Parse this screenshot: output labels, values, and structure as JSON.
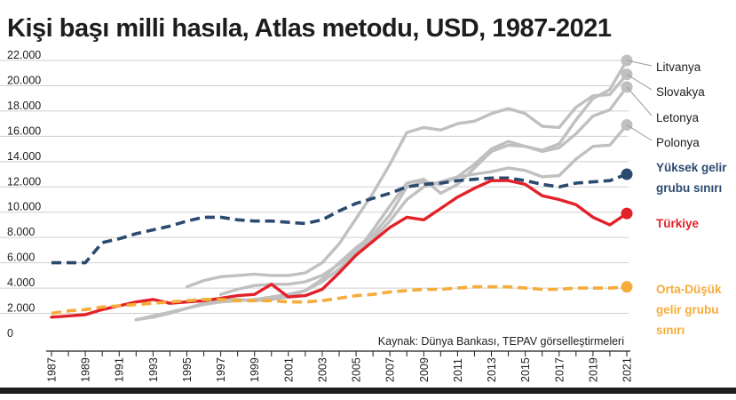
{
  "chart_data": {
    "type": "line",
    "title": "Kişi başı milli hasıla, Atlas metodu, USD, 1987-2021",
    "source": "Kaynak: Dünya Bankası, TEPAV görselleştirmeleri",
    "xlim": [
      1987,
      2021
    ],
    "ylim": [
      0,
      22000
    ],
    "x_ticks": [
      "1987",
      "1989",
      "1991",
      "1993",
      "1995",
      "1997",
      "1999",
      "2001",
      "2003",
      "2005",
      "2007",
      "2009",
      "2011",
      "2013",
      "2015",
      "2017",
      "2019",
      "2021"
    ],
    "y_ticks": [
      "0",
      "2.000",
      "4.000",
      "6.000",
      "8.000",
      "10.000",
      "12.000",
      "14.000",
      "16.000",
      "18.000",
      "20.000",
      "22.000"
    ],
    "grid": "horizontal",
    "legend": "end-of-line labels, right",
    "series": [
      {
        "name": "Litvanya",
        "color": "#c0c0c0",
        "dashed": false,
        "x": [
          1992,
          1993,
          1994,
          1995,
          1996,
          1997,
          1998,
          1999,
          2000,
          2001,
          2002,
          2003,
          2004,
          2005,
          2006,
          2007,
          2008,
          2009,
          2010,
          2011,
          2012,
          2013,
          2014,
          2015,
          2016,
          2017,
          2018,
          2019,
          2020,
          2021
        ],
        "y": [
          1500,
          1800,
          2100,
          2400,
          2800,
          3100,
          3100,
          3000,
          3100,
          3300,
          3800,
          4700,
          6000,
          7200,
          8200,
          9800,
          12000,
          12400,
          12200,
          12800,
          13800,
          15000,
          15600,
          15200,
          14900,
          15400,
          17300,
          19000,
          19700,
          22000
        ]
      },
      {
        "name": "Slovakya",
        "color": "#c0c0c0",
        "dashed": false,
        "x": [
          1995,
          1996,
          1997,
          1998,
          1999,
          2000,
          2001,
          2002,
          2003,
          2004,
          2005,
          2006,
          2007,
          2008,
          2009,
          2010,
          2011,
          2012,
          2013,
          2014,
          2015,
          2016,
          2017,
          2018,
          2019,
          2020,
          2021
        ],
        "y": [
          4100,
          4600,
          4900,
          5000,
          5100,
          5000,
          5000,
          5200,
          6000,
          7500,
          9500,
          11500,
          13800,
          16300,
          16700,
          16500,
          17000,
          17200,
          17800,
          18200,
          17800,
          16800,
          16700,
          18300,
          19200,
          19300,
          20900
        ]
      },
      {
        "name": "Letonya",
        "color": "#c0c0c0",
        "dashed": false,
        "x": [
          1992,
          1993,
          1994,
          1995,
          1996,
          1997,
          1998,
          1999,
          2000,
          2001,
          2002,
          2003,
          2004,
          2005,
          2006,
          2007,
          2008,
          2009,
          2010,
          2011,
          2012,
          2013,
          2014,
          2015,
          2016,
          2017,
          2018,
          2019,
          2020,
          2021
        ],
        "y": [
          1500,
          1700,
          2000,
          2400,
          2700,
          2900,
          3000,
          3100,
          3300,
          3500,
          3800,
          4500,
          5500,
          6800,
          8600,
          10500,
          12300,
          12600,
          11500,
          12200,
          13500,
          14800,
          15300,
          15200,
          14800,
          15100,
          16200,
          17600,
          18100,
          19900
        ]
      },
      {
        "name": "Polonya",
        "color": "#c0c0c0",
        "dashed": false,
        "x": [
          1997,
          1998,
          1999,
          2000,
          2001,
          2002,
          2003,
          2004,
          2005,
          2006,
          2007,
          2008,
          2009,
          2010,
          2011,
          2012,
          2013,
          2014,
          2015,
          2016,
          2017,
          2018,
          2019,
          2020,
          2021
        ],
        "y": [
          3500,
          3900,
          4200,
          4300,
          4300,
          4500,
          5000,
          5900,
          6900,
          7900,
          9300,
          11000,
          12000,
          12400,
          12800,
          13000,
          13200,
          13500,
          13300,
          12800,
          12900,
          14200,
          15200,
          15300,
          16900
        ]
      },
      {
        "name": "Yüksek gelir grubu sınırı",
        "color": "#2b4a70",
        "dashed": true,
        "x": [
          1987,
          1988,
          1989,
          1990,
          1991,
          1992,
          1993,
          1994,
          1995,
          1996,
          1997,
          1998,
          1999,
          2000,
          2001,
          2002,
          2003,
          2004,
          2005,
          2006,
          2007,
          2008,
          2009,
          2010,
          2011,
          2012,
          2013,
          2014,
          2015,
          2016,
          2017,
          2018,
          2019,
          2020,
          2021
        ],
        "y": [
          6000,
          6000,
          6000,
          7600,
          7900,
          8300,
          8600,
          8900,
          9300,
          9600,
          9600,
          9400,
          9300,
          9300,
          9200,
          9100,
          9400,
          10100,
          10700,
          11100,
          11500,
          12000,
          12200,
          12300,
          12500,
          12600,
          12700,
          12700,
          12500,
          12200,
          12000,
          12300,
          12400,
          12500,
          13000
        ]
      },
      {
        "name": "Türkiye",
        "color": "#e32129",
        "dashed": false,
        "x": [
          1987,
          1988,
          1989,
          1990,
          1991,
          1992,
          1993,
          1994,
          1995,
          1996,
          1997,
          1998,
          1999,
          2000,
          2001,
          2002,
          2003,
          2004,
          2005,
          2006,
          2007,
          2008,
          2009,
          2010,
          2011,
          2012,
          2013,
          2014,
          2015,
          2016,
          2017,
          2018,
          2019,
          2020,
          2021
        ],
        "y": [
          1700,
          1800,
          1900,
          2300,
          2600,
          2900,
          3100,
          2800,
          2900,
          3000,
          3200,
          3400,
          3500,
          4300,
          3300,
          3400,
          3900,
          5200,
          6600,
          7700,
          8800,
          9600,
          9400,
          10300,
          11200,
          11900,
          12500,
          12500,
          12200,
          11300,
          11000,
          10600,
          9600,
          9000,
          9900
        ]
      },
      {
        "name": "Orta-Düşük gelir grubu sınırı",
        "color": "#f5ac3b",
        "dashed": true,
        "x": [
          1987,
          1988,
          1989,
          1990,
          1991,
          1992,
          1993,
          1994,
          1995,
          1996,
          1997,
          1998,
          1999,
          2000,
          2001,
          2002,
          2003,
          2004,
          2005,
          2006,
          2007,
          2008,
          2009,
          2010,
          2011,
          2012,
          2013,
          2014,
          2015,
          2016,
          2017,
          2018,
          2019,
          2020,
          2021
        ],
        "y": [
          2000,
          2200,
          2300,
          2500,
          2600,
          2700,
          2800,
          2900,
          3000,
          3100,
          3100,
          3000,
          3000,
          3000,
          2900,
          2900,
          3000,
          3200,
          3400,
          3500,
          3700,
          3800,
          3900,
          3900,
          4000,
          4100,
          4100,
          4100,
          4000,
          3900,
          3900,
          4000,
          4000,
          4000,
          4100
        ]
      }
    ]
  }
}
